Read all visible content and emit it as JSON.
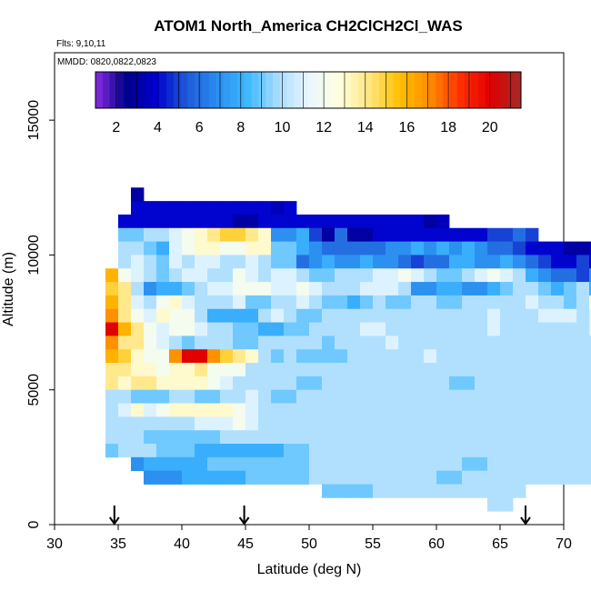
{
  "chart_data": {
    "type": "heatmap",
    "title": "ATOM1 North_America CH2ClCH2Cl_WAS",
    "flights_label": "Flts: 9,10,11",
    "dates_label": "MMDD: 0820,0822,0823",
    "xlabel": "Latitude (deg N)",
    "ylabel": "Altitude (m)",
    "xlim": [
      30,
      70
    ],
    "ylim": [
      0,
      17500
    ],
    "x_ticks": [
      30,
      35,
      40,
      45,
      50,
      55,
      60,
      65,
      70
    ],
    "y_ticks": [
      0,
      5000,
      10000,
      15000
    ],
    "grid": false,
    "colorbar": {
      "range": [
        1,
        21.5
      ],
      "tick_values": [
        2,
        4,
        6,
        8,
        10,
        12,
        14,
        16,
        18,
        20
      ],
      "colors": [
        "#8a2be2",
        "#00008b",
        "#0000cd",
        "#1e5bd8",
        "#2a8cf0",
        "#3db8ff",
        "#a8dcff",
        "#e8f6ff",
        "#ffffe0",
        "#ffe680",
        "#ffc000",
        "#ff8c00",
        "#ff3000",
        "#e00000",
        "#a52a2a"
      ]
    },
    "arrow_latitudes": [
      34.7,
      44.9,
      67.0
    ],
    "bin_width_deg": 1,
    "bin_height_m": 500,
    "rows": [
      {
        "alt": 12000,
        "lat_start": 36,
        "values": [
          3
        ]
      },
      {
        "alt": 11500,
        "lat_start": 36,
        "values": [
          4,
          4,
          4,
          4,
          4,
          4,
          4,
          4,
          4,
          4,
          4,
          3.5,
          4
        ]
      },
      {
        "alt": 11000,
        "lat_start": 35,
        "values": [
          4,
          4,
          4,
          4,
          4,
          4,
          4,
          4,
          4,
          3,
          3,
          4,
          4,
          4,
          4,
          4,
          4,
          4,
          4,
          4,
          4,
          4,
          4,
          4,
          3,
          3.5
        ]
      },
      {
        "alt": 10500,
        "lat_start": 35,
        "values": [
          9,
          9,
          10,
          10,
          11,
          12,
          13,
          14,
          15,
          15,
          14,
          13,
          7,
          7,
          8,
          5,
          3,
          6,
          3,
          3,
          4,
          4,
          4,
          4,
          4,
          4,
          4,
          4,
          4,
          5,
          5,
          6,
          5
        ]
      },
      {
        "alt": 10000,
        "lat_start": 35,
        "values": [
          10,
          10,
          9,
          8,
          11,
          12,
          13,
          13,
          12,
          12,
          13,
          13,
          9,
          9,
          8,
          7,
          6,
          6,
          6,
          6,
          6,
          7,
          7,
          8,
          7,
          8,
          7,
          8,
          7,
          6,
          6,
          5,
          4,
          4,
          4,
          3,
          3,
          3.5
        ]
      },
      {
        "alt": 9500,
        "lat_start": 35,
        "values": [
          10,
          11,
          10,
          9,
          11,
          10,
          11,
          11,
          10,
          10,
          11,
          10,
          9,
          9,
          6,
          7,
          8,
          7,
          7,
          8,
          7,
          7,
          6,
          5,
          6,
          6,
          8,
          8,
          7,
          7,
          8,
          7,
          6,
          5,
          4,
          4,
          5,
          4,
          5
        ]
      },
      {
        "alt": 9000,
        "lat_start": 34,
        "values": [
          16,
          12,
          11,
          10,
          9,
          10,
          11,
          11,
          10,
          10,
          12,
          11,
          10,
          11,
          11,
          10,
          9,
          9,
          10,
          10,
          10,
          11,
          11,
          12,
          11,
          10,
          9,
          9,
          10,
          11,
          12,
          11,
          10,
          8,
          7,
          6,
          6,
          5,
          7,
          5,
          4,
          3.5
        ]
      },
      {
        "alt": 8500,
        "lat_start": 34,
        "values": [
          15,
          14,
          10,
          7,
          8,
          8,
          9,
          10,
          11,
          11,
          12,
          12,
          12,
          11,
          11,
          12,
          11,
          10,
          10,
          10,
          11,
          11,
          11,
          10,
          7,
          7,
          8,
          8,
          7,
          7,
          8,
          9,
          10,
          10,
          9,
          8,
          9,
          10,
          8,
          7
        ]
      },
      {
        "alt": 8000,
        "lat_start": 34,
        "values": [
          16,
          14,
          11,
          10,
          12,
          13,
          11,
          10,
          10,
          10,
          11,
          9,
          9,
          10,
          10,
          11,
          10,
          9,
          9,
          8,
          9,
          10,
          9,
          9,
          10,
          10,
          9,
          9,
          10,
          10,
          10,
          10,
          10,
          11,
          10,
          10,
          9,
          10,
          13,
          11
        ]
      },
      {
        "alt": 7500,
        "lat_start": 34,
        "values": [
          17,
          14,
          12,
          11,
          13,
          12,
          12,
          10,
          8,
          8,
          8,
          8,
          10,
          11,
          10,
          9,
          9,
          10,
          10,
          10,
          10,
          10,
          10,
          10,
          10,
          10,
          10,
          10,
          10,
          10,
          11,
          10,
          10,
          10,
          11,
          11,
          11,
          10,
          11,
          10
        ]
      },
      {
        "alt": 7000,
        "lat_start": 34,
        "values": [
          20,
          16,
          14,
          12,
          11,
          12,
          12,
          11,
          10,
          10,
          9,
          9,
          8,
          8,
          9,
          9,
          10,
          10,
          10,
          10,
          11,
          11,
          10,
          10,
          10,
          10,
          10,
          10,
          10,
          10,
          11,
          10,
          10,
          10,
          10,
          10,
          10,
          10,
          11,
          10
        ]
      },
      {
        "alt": 6500,
        "lat_start": 34,
        "values": [
          17,
          14,
          14,
          12,
          11,
          10,
          9,
          10,
          10,
          10,
          9,
          9,
          10,
          10,
          10,
          10,
          10,
          9,
          10,
          10,
          10,
          10,
          11,
          10,
          10,
          10,
          10,
          10,
          10,
          10,
          10,
          10,
          10,
          10,
          10,
          10,
          10,
          10,
          10,
          10
        ]
      },
      {
        "alt": 6000,
        "lat_start": 34,
        "values": [
          16,
          15,
          13,
          12,
          12,
          17,
          20,
          20,
          17,
          15,
          14,
          13,
          10,
          9,
          10,
          9,
          9,
          9,
          9,
          10,
          10,
          10,
          10,
          10,
          10,
          11,
          10,
          10,
          10,
          10,
          10,
          10,
          10,
          10,
          10,
          10,
          10,
          10,
          10,
          10
        ]
      },
      {
        "alt": 5500,
        "lat_start": 34,
        "values": [
          14,
          14,
          13,
          13,
          12,
          13,
          13,
          14,
          12,
          12,
          12,
          10,
          10,
          10,
          10,
          10,
          10,
          10,
          10,
          10,
          10,
          10,
          10,
          10,
          10,
          10,
          10,
          10,
          10,
          10,
          10,
          10,
          10,
          10,
          10,
          10,
          10,
          10,
          10,
          10
        ]
      },
      {
        "alt": 5000,
        "lat_start": 34,
        "values": [
          14,
          13,
          14,
          14,
          13,
          13,
          13,
          13,
          12,
          11,
          10,
          10,
          10,
          10,
          10,
          9,
          9,
          10,
          10,
          10,
          10,
          10,
          10,
          10,
          10,
          10,
          10,
          9,
          9,
          10,
          10,
          10,
          10,
          10,
          10,
          10,
          10,
          10,
          10,
          10
        ]
      },
      {
        "alt": 4500,
        "lat_start": 34,
        "values": [
          10,
          10,
          9,
          9,
          9,
          10,
          10,
          9,
          9,
          10,
          10,
          11,
          10,
          9,
          9,
          10,
          10,
          10,
          10,
          10,
          10,
          10,
          10,
          10,
          10,
          10,
          10,
          10,
          10,
          10,
          10,
          10,
          10,
          10,
          10,
          10,
          10,
          10,
          10,
          10
        ]
      },
      {
        "alt": 4000,
        "lat_start": 34,
        "values": [
          10,
          11,
          13,
          11,
          12,
          13,
          13,
          13,
          13,
          13,
          12,
          11,
          10,
          10,
          10,
          10,
          10,
          10,
          10,
          10,
          10,
          10,
          10,
          10,
          10,
          10,
          10,
          10,
          10,
          10,
          10,
          10,
          10,
          10,
          10,
          10,
          10,
          10,
          10,
          10
        ]
      },
      {
        "alt": 3500,
        "lat_start": 34,
        "values": [
          10,
          10,
          10,
          10,
          10,
          10,
          10,
          11,
          11,
          11,
          12,
          11,
          10,
          10,
          10,
          10,
          10,
          10,
          10,
          10,
          10,
          10,
          10,
          10,
          10,
          10,
          10,
          10,
          10,
          10,
          10,
          10,
          10,
          10,
          10,
          10,
          10,
          10,
          10,
          10
        ]
      },
      {
        "alt": 3000,
        "lat_start": 34,
        "values": [
          10,
          10,
          10,
          9,
          9,
          9,
          9,
          9,
          9,
          10,
          10,
          10,
          10,
          10,
          10,
          10,
          10,
          10,
          10,
          10,
          10,
          10,
          10,
          10,
          10,
          10,
          10,
          10,
          10,
          10,
          10,
          10,
          10,
          10,
          10,
          10,
          10,
          10,
          10,
          10
        ]
      },
      {
        "alt": 2500,
        "lat_start": 34,
        "values": [
          9,
          10,
          10,
          10,
          9,
          9,
          9,
          8,
          8,
          8,
          8,
          8,
          8,
          8,
          9,
          9,
          10,
          10,
          10,
          10,
          10,
          10,
          10,
          10,
          10,
          10,
          10,
          10,
          10,
          10,
          10,
          10,
          10,
          10,
          10,
          10,
          10,
          10,
          10,
          10
        ]
      },
      {
        "alt": 2000,
        "lat_start": 36,
        "values": [
          7,
          8,
          8,
          8,
          8,
          8,
          9,
          9,
          9,
          9,
          9,
          9,
          9,
          9,
          10,
          10,
          10,
          10,
          10,
          10,
          10,
          10,
          10,
          10,
          10,
          10,
          9,
          9,
          10,
          10,
          10,
          10,
          10,
          10,
          10,
          10,
          10,
          10
        ]
      },
      {
        "alt": 1500,
        "lat_start": 37,
        "values": [
          7,
          7,
          7,
          8,
          8,
          8,
          8,
          8,
          9,
          9,
          9,
          9,
          9,
          10,
          10,
          10,
          10,
          10,
          10,
          10,
          10,
          10,
          10,
          9,
          9,
          10,
          10,
          10,
          10,
          10,
          10,
          10,
          10,
          10,
          10,
          10,
          10
        ]
      },
      {
        "alt": 1000,
        "lat_start": 51,
        "values": [
          9,
          9,
          9,
          9,
          10,
          10,
          10,
          10,
          10,
          10,
          10,
          10,
          10,
          10,
          10,
          10
        ]
      },
      {
        "alt": 500,
        "lat_start": 64,
        "values": [
          10,
          10
        ]
      }
    ]
  }
}
